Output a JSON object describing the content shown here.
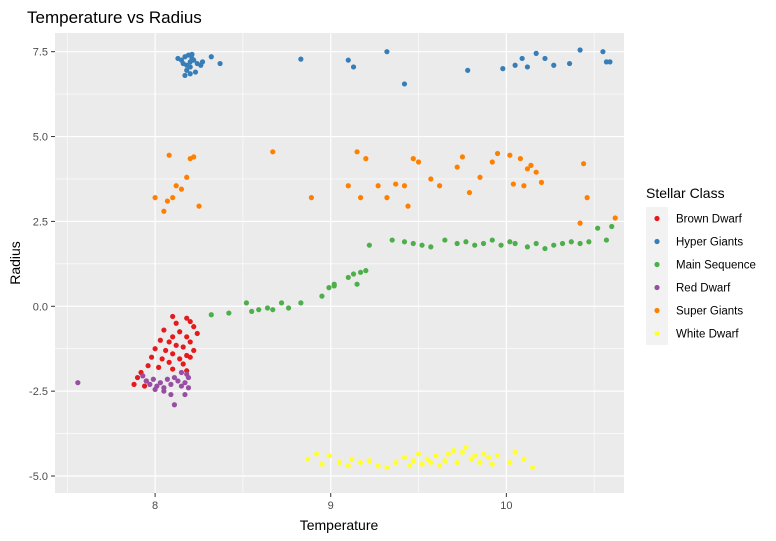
{
  "chart_data": {
    "type": "scatter",
    "title": "Temperature vs Radius",
    "xlabel": "Temperature",
    "ylabel": "Radius",
    "xlim": [
      7.43,
      10.67
    ],
    "ylim": [
      -5.5,
      8.05
    ],
    "x_ticks": [
      8,
      9,
      10
    ],
    "x_tick_labels": [
      "8",
      "9",
      "10"
    ],
    "y_ticks": [
      -5.0,
      -2.5,
      0.0,
      2.5,
      5.0,
      7.5
    ],
    "y_tick_labels": [
      "-5.0",
      "-2.5",
      "0.0",
      "2.5",
      "5.0",
      "7.5"
    ],
    "grid": true,
    "legend_title": "Stellar Class",
    "legend_position": "right",
    "series": [
      {
        "name": "Brown Dwarf",
        "color": "#E41A1C",
        "points": [
          [
            8.1,
            -0.3
          ],
          [
            8.18,
            -0.35
          ],
          [
            8.12,
            -0.5
          ],
          [
            8.2,
            -0.45
          ],
          [
            8.22,
            -0.6
          ],
          [
            8.05,
            -0.7
          ],
          [
            8.14,
            -0.75
          ],
          [
            8.24,
            -0.8
          ],
          [
            8.1,
            -0.9
          ],
          [
            8.18,
            -0.9
          ],
          [
            8.03,
            -1.0
          ],
          [
            8.08,
            -1.05
          ],
          [
            8.2,
            -1.05
          ],
          [
            8.12,
            -1.15
          ],
          [
            8.16,
            -1.2
          ],
          [
            8.0,
            -1.25
          ],
          [
            8.06,
            -1.3
          ],
          [
            8.22,
            -1.3
          ],
          [
            8.1,
            -1.4
          ],
          [
            8.18,
            -1.45
          ],
          [
            7.98,
            -1.5
          ],
          [
            8.04,
            -1.55
          ],
          [
            8.14,
            -1.55
          ],
          [
            8.2,
            -1.5
          ],
          [
            8.08,
            -1.65
          ],
          [
            8.16,
            -1.7
          ],
          [
            7.96,
            -1.75
          ],
          [
            8.02,
            -1.8
          ],
          [
            8.1,
            -1.85
          ],
          [
            8.18,
            -1.9
          ],
          [
            7.92,
            -1.95
          ],
          [
            7.9,
            -2.1
          ],
          [
            7.95,
            -2.2
          ],
          [
            7.88,
            -2.3
          ],
          [
            7.94,
            -2.35
          ]
        ]
      },
      {
        "name": "Hyper Giants",
        "color": "#377EB8",
        "points": [
          [
            8.13,
            7.3
          ],
          [
            8.15,
            7.25
          ],
          [
            8.17,
            7.35
          ],
          [
            8.19,
            7.4
          ],
          [
            8.21,
            7.3
          ],
          [
            8.16,
            7.15
          ],
          [
            8.18,
            7.1
          ],
          [
            8.2,
            7.2
          ],
          [
            8.22,
            7.25
          ],
          [
            8.24,
            7.15
          ],
          [
            8.26,
            7.1
          ],
          [
            8.18,
            6.95
          ],
          [
            8.2,
            6.85
          ],
          [
            8.17,
            6.8
          ],
          [
            8.23,
            6.9
          ],
          [
            8.21,
            7.42
          ],
          [
            8.27,
            7.2
          ],
          [
            8.32,
            7.35
          ],
          [
            8.37,
            7.15
          ],
          [
            8.2,
            7.05
          ],
          [
            8.83,
            7.28
          ],
          [
            9.1,
            7.25
          ],
          [
            9.13,
            7.05
          ],
          [
            9.32,
            7.5
          ],
          [
            9.42,
            6.55
          ],
          [
            9.78,
            6.95
          ],
          [
            9.98,
            7.0
          ],
          [
            10.05,
            7.1
          ],
          [
            10.09,
            7.3
          ],
          [
            10.12,
            7.05
          ],
          [
            10.17,
            7.45
          ],
          [
            10.22,
            7.3
          ],
          [
            10.27,
            7.1
          ],
          [
            10.36,
            7.15
          ],
          [
            10.42,
            7.55
          ],
          [
            10.55,
            7.5
          ],
          [
            10.57,
            7.2
          ],
          [
            10.59,
            7.2
          ]
        ]
      },
      {
        "name": "Main Sequence",
        "color": "#4DAF4A",
        "points": [
          [
            8.32,
            -0.25
          ],
          [
            8.42,
            -0.2
          ],
          [
            8.52,
            0.1
          ],
          [
            8.55,
            -0.15
          ],
          [
            8.59,
            -0.1
          ],
          [
            8.64,
            -0.05
          ],
          [
            8.67,
            -0.1
          ],
          [
            8.72,
            0.1
          ],
          [
            8.76,
            -0.05
          ],
          [
            8.83,
            0.1
          ],
          [
            8.95,
            0.3
          ],
          [
            8.99,
            0.55
          ],
          [
            9.02,
            0.65
          ],
          [
            9.02,
            0.6
          ],
          [
            9.1,
            0.85
          ],
          [
            9.13,
            0.95
          ],
          [
            9.15,
            0.65
          ],
          [
            9.17,
            1.0
          ],
          [
            9.2,
            1.05
          ],
          [
            9.22,
            1.8
          ],
          [
            9.35,
            1.95
          ],
          [
            9.42,
            1.9
          ],
          [
            9.47,
            1.85
          ],
          [
            9.52,
            1.8
          ],
          [
            9.57,
            1.75
          ],
          [
            9.65,
            1.95
          ],
          [
            9.72,
            1.85
          ],
          [
            9.77,
            1.9
          ],
          [
            9.82,
            1.8
          ],
          [
            9.87,
            1.85
          ],
          [
            9.92,
            1.95
          ],
          [
            9.97,
            1.8
          ],
          [
            10.02,
            1.9
          ],
          [
            10.05,
            1.85
          ],
          [
            10.12,
            1.75
          ],
          [
            10.17,
            1.85
          ],
          [
            10.22,
            1.7
          ],
          [
            10.27,
            1.8
          ],
          [
            10.32,
            1.85
          ],
          [
            10.37,
            1.9
          ],
          [
            10.42,
            1.85
          ],
          [
            10.47,
            1.9
          ],
          [
            10.52,
            2.3
          ],
          [
            10.57,
            1.95
          ],
          [
            10.6,
            2.35
          ]
        ]
      },
      {
        "name": "Red Dwarf",
        "color": "#984EA3",
        "points": [
          [
            7.56,
            -2.25
          ],
          [
            7.93,
            -2.05
          ],
          [
            7.95,
            -2.2
          ],
          [
            7.97,
            -2.3
          ],
          [
            7.99,
            -2.15
          ],
          [
            8.01,
            -2.35
          ],
          [
            8.03,
            -2.25
          ],
          [
            8.05,
            -2.4
          ],
          [
            8.07,
            -2.15
          ],
          [
            8.09,
            -2.3
          ],
          [
            8.11,
            -2.1
          ],
          [
            8.13,
            -2.2
          ],
          [
            8.15,
            -2.35
          ],
          [
            8.17,
            -2.25
          ],
          [
            8.19,
            -2.1
          ],
          [
            8.15,
            -1.95
          ],
          [
            8.05,
            -2.5
          ],
          [
            8.09,
            -2.6
          ],
          [
            8.11,
            -2.9
          ],
          [
            8.17,
            -2.6
          ],
          [
            8.19,
            -2.4
          ],
          [
            8.0,
            -2.45
          ],
          [
            8.18,
            -2.0
          ]
        ]
      },
      {
        "name": "Super Giants",
        "color": "#FF7F00",
        "points": [
          [
            8.0,
            3.2
          ],
          [
            8.05,
            2.8
          ],
          [
            8.07,
            3.1
          ],
          [
            8.08,
            4.45
          ],
          [
            8.1,
            3.2
          ],
          [
            8.12,
            3.55
          ],
          [
            8.15,
            3.45
          ],
          [
            8.18,
            3.8
          ],
          [
            8.2,
            4.35
          ],
          [
            8.22,
            4.4
          ],
          [
            8.25,
            2.95
          ],
          [
            8.67,
            4.55
          ],
          [
            8.89,
            3.2
          ],
          [
            9.1,
            3.55
          ],
          [
            9.15,
            4.55
          ],
          [
            9.17,
            3.2
          ],
          [
            9.2,
            4.35
          ],
          [
            9.27,
            3.55
          ],
          [
            9.32,
            3.2
          ],
          [
            9.37,
            3.6
          ],
          [
            9.42,
            3.55
          ],
          [
            9.44,
            2.95
          ],
          [
            9.47,
            4.35
          ],
          [
            9.5,
            4.25
          ],
          [
            9.57,
            3.75
          ],
          [
            9.62,
            3.55
          ],
          [
            9.72,
            4.1
          ],
          [
            9.75,
            4.4
          ],
          [
            9.79,
            3.35
          ],
          [
            9.85,
            3.8
          ],
          [
            9.92,
            4.25
          ],
          [
            9.95,
            4.5
          ],
          [
            10.02,
            4.45
          ],
          [
            10.04,
            3.6
          ],
          [
            10.08,
            4.35
          ],
          [
            10.1,
            3.55
          ],
          [
            10.12,
            4.05
          ],
          [
            10.14,
            4.15
          ],
          [
            10.17,
            3.95
          ],
          [
            10.2,
            3.65
          ],
          [
            10.42,
            2.45
          ],
          [
            10.44,
            4.2
          ],
          [
            10.46,
            3.2
          ],
          [
            10.62,
            2.6
          ]
        ]
      },
      {
        "name": "White Dwarf",
        "color": "#FFFF33",
        "points": [
          [
            8.87,
            -4.5
          ],
          [
            8.92,
            -4.35
          ],
          [
            8.95,
            -4.65
          ],
          [
            8.99,
            -4.4
          ],
          [
            9.05,
            -4.6
          ],
          [
            9.1,
            -4.7
          ],
          [
            9.12,
            -4.5
          ],
          [
            9.17,
            -4.6
          ],
          [
            9.22,
            -4.55
          ],
          [
            9.27,
            -4.7
          ],
          [
            9.32,
            -4.75
          ],
          [
            9.37,
            -4.6
          ],
          [
            9.42,
            -4.45
          ],
          [
            9.45,
            -4.7
          ],
          [
            9.47,
            -4.55
          ],
          [
            9.5,
            -4.35
          ],
          [
            9.52,
            -4.65
          ],
          [
            9.55,
            -4.5
          ],
          [
            9.57,
            -4.6
          ],
          [
            9.6,
            -4.4
          ],
          [
            9.62,
            -4.7
          ],
          [
            9.65,
            -4.55
          ],
          [
            9.67,
            -4.35
          ],
          [
            9.7,
            -4.25
          ],
          [
            9.72,
            -4.6
          ],
          [
            9.75,
            -4.3
          ],
          [
            9.77,
            -4.15
          ],
          [
            9.8,
            -4.5
          ],
          [
            9.82,
            -4.4
          ],
          [
            9.85,
            -4.6
          ],
          [
            9.87,
            -4.35
          ],
          [
            9.9,
            -4.45
          ],
          [
            9.92,
            -4.65
          ],
          [
            9.95,
            -4.4
          ],
          [
            10.02,
            -4.6
          ],
          [
            10.05,
            -4.3
          ],
          [
            10.1,
            -4.5
          ],
          [
            10.15,
            -4.75
          ]
        ]
      }
    ]
  }
}
